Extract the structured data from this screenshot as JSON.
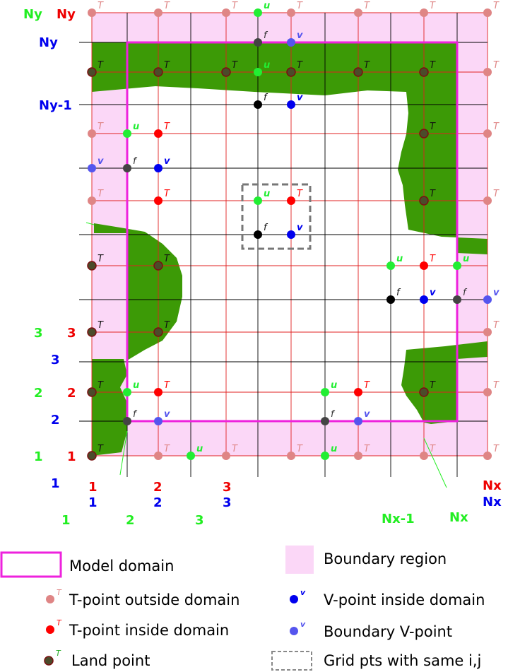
{
  "colors": {
    "boundary_fill": "#fbd7f7",
    "domain_border": "#ee22dd",
    "land_fill": "#3c9a06",
    "red_grid": "#e02020",
    "black_grid": "#000000",
    "t_outside": "#df8585",
    "t_inside": "#ff0000",
    "land_point_fill": "#4b4b2a",
    "land_point_ring": "#7a1010",
    "u_point": "#22ee33",
    "v_inside": "#0000ee",
    "v_boundary": "#5555ee",
    "f_point": "#000000",
    "label_green": "#22ee22",
    "label_red": "#ee0000",
    "label_blue": "#0000ee"
  },
  "point_letters": {
    "t": "T",
    "u": "u",
    "v": "v",
    "f": "f"
  },
  "axis_labels": {
    "left": {
      "ny_green": "Ny",
      "ny_red": "Ny",
      "ny_blue": "Ny",
      "ny1_blue": "Ny-1",
      "three_green": "3",
      "three_red": "3",
      "three_blue": "3",
      "two_green": "2",
      "two_red": "2",
      "two_blue": "2",
      "one_green": "1",
      "one_red": "1",
      "one_blue": "1"
    },
    "bottom": {
      "one_red": "1",
      "one_blue": "1",
      "two_red": "2",
      "two_blue": "2",
      "three_red": "3",
      "three_blue": "3",
      "nx_red": "Nx",
      "nx_blue": "Nx",
      "one_green": "1",
      "two_green": "2",
      "three_green": "3",
      "nx1_green": "Nx-1",
      "nx_green": "Nx"
    }
  },
  "legend": {
    "model_domain": "Model domain",
    "boundary_region": "Boundary region",
    "t_outside": "T-point outside domain",
    "v_inside": "V-point inside domain",
    "t_inside": "T-point inside domain",
    "v_boundary": "Boundary V-point",
    "land_point": "Land point",
    "same_ij": "Grid pts with same i,j"
  }
}
